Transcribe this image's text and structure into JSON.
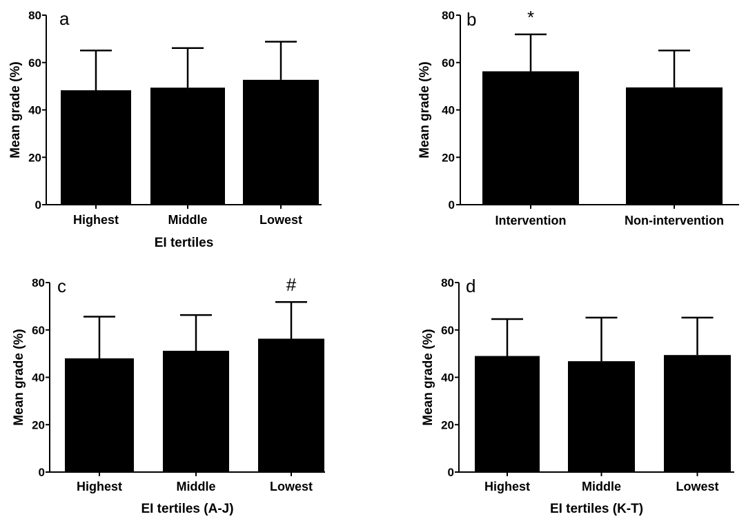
{
  "chart_data": [
    {
      "type": "bar",
      "panel": "a",
      "categories": [
        "Highest",
        "Middle",
        "Lowest"
      ],
      "values": [
        48.3,
        49.4,
        52.7
      ],
      "errors": [
        16.8,
        16.7,
        16.1
      ],
      "xlabel": "EI tertiles",
      "ylabel": "Mean grade (%)",
      "ylim": [
        0,
        80
      ],
      "yticks": [
        0,
        20,
        40,
        60,
        80
      ],
      "markers": [],
      "bar_color": "#000000",
      "grid": false
    },
    {
      "type": "bar",
      "panel": "b",
      "categories": [
        "Intervention",
        "Non-intervention"
      ],
      "values": [
        56.3,
        49.5
      ],
      "errors": [
        15.6,
        15.6
      ],
      "xlabel": "",
      "ylabel": "Mean grade (%)",
      "ylim": [
        0,
        80
      ],
      "yticks": [
        0,
        20,
        40,
        60,
        80
      ],
      "markers": [
        {
          "index": 0,
          "symbol": "*"
        }
      ],
      "bar_color": "#000000",
      "grid": false
    },
    {
      "type": "bar",
      "panel": "c",
      "categories": [
        "Highest",
        "Middle",
        "Lowest"
      ],
      "values": [
        48.0,
        51.2,
        56.3
      ],
      "errors": [
        17.6,
        15.1,
        15.5
      ],
      "xlabel": "EI tertiles (A-J)",
      "ylabel": "Mean grade (%)",
      "ylim": [
        0,
        80
      ],
      "yticks": [
        0,
        20,
        40,
        60,
        80
      ],
      "markers": [
        {
          "index": 2,
          "symbol": "#"
        }
      ],
      "bar_color": "#000000",
      "grid": false
    },
    {
      "type": "bar",
      "panel": "d",
      "categories": [
        "Highest",
        "Middle",
        "Lowest"
      ],
      "values": [
        49.0,
        46.8,
        49.4
      ],
      "errors": [
        15.6,
        18.4,
        15.8
      ],
      "xlabel": "EI tertiles (K-T)",
      "ylabel": "Mean grade (%)",
      "ylim": [
        0,
        80
      ],
      "yticks": [
        0,
        20,
        40,
        60,
        80
      ],
      "markers": [],
      "bar_color": "#000000",
      "grid": false
    }
  ]
}
